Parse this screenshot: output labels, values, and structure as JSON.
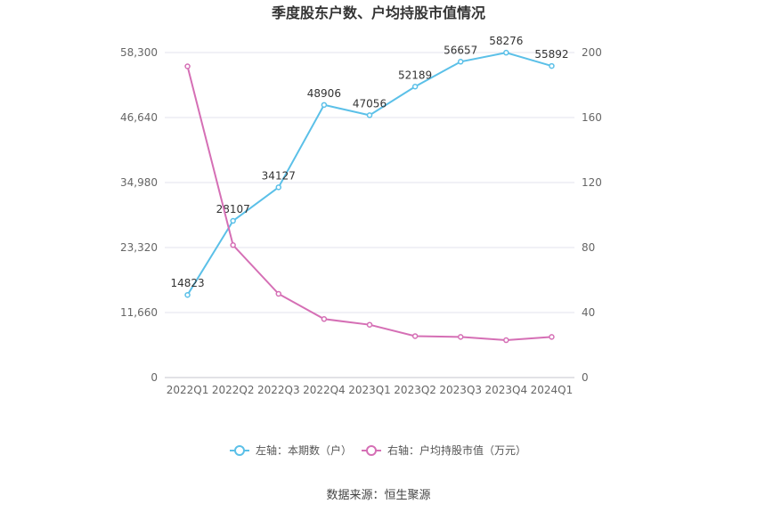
{
  "chart_data": {
    "type": "line",
    "title": "季度股东户数、户均持股市值情况",
    "categories": [
      "2022Q1",
      "2022Q2",
      "2022Q3",
      "2022Q4",
      "2023Q1",
      "2023Q2",
      "2023Q3",
      "2023Q4",
      "2024Q1"
    ],
    "left_axis": {
      "ticks": [
        "0",
        "11,660",
        "23,320",
        "34,980",
        "46,640",
        "58,300"
      ],
      "min": 0,
      "max": 58300
    },
    "right_axis": {
      "ticks": [
        "0",
        "40",
        "80",
        "120",
        "160",
        "200"
      ],
      "min": 0,
      "max": 200
    },
    "series": [
      {
        "name": "左轴：本期数（户）",
        "axis": "left",
        "color": "#5bc0e8",
        "values": [
          14823,
          28107,
          34127,
          48906,
          47056,
          52189,
          56657,
          58276,
          55892
        ],
        "labels": [
          "14823",
          "28107",
          "34127",
          "48906",
          "47056",
          "52189",
          "56657",
          "58276",
          "55892"
        ]
      },
      {
        "name": "右轴：户均持股市值（万元）",
        "axis": "right",
        "color": "#d56fb5",
        "values": [
          191.5,
          81.5,
          51.5,
          36,
          32.5,
          25.5,
          25,
          23,
          25
        ]
      }
    ],
    "grid": true,
    "legend_position": "bottom"
  },
  "source": "数据来源：恒生聚源"
}
